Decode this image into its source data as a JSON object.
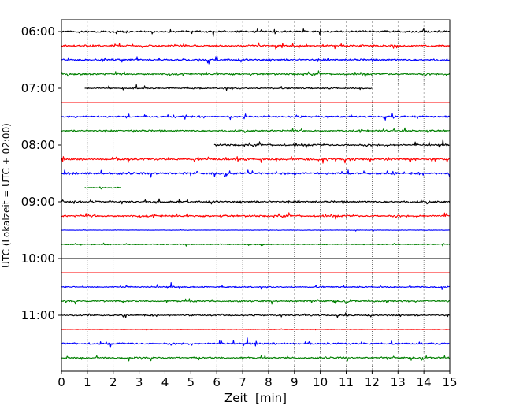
{
  "chart_data": {
    "type": "line",
    "subtype": "helicorder",
    "xlabel": "Zeit  [min]",
    "ylabel": "UTC (Lokalzeit = UTC + 02:00)",
    "xlim": [
      0,
      15
    ],
    "x_ticks": [
      "0",
      "1",
      "2",
      "3",
      "4",
      "5",
      "6",
      "7",
      "8",
      "9",
      "10",
      "11",
      "12",
      "13",
      "14",
      "15"
    ],
    "vertical_grid": "dotted",
    "y_tick_labels": [
      "06:00",
      "07:00",
      "08:00",
      "09:00",
      "10:00",
      "11:00"
    ],
    "line_colors": [
      "#000000",
      "#ff0000",
      "#0000ff",
      "#008000"
    ],
    "traces": [
      {
        "time": "06:00",
        "color": "#000000",
        "x_start": 0,
        "x_end": 15,
        "activity": 0.8
      },
      {
        "time": "06:15",
        "color": "#ff0000",
        "x_start": 0,
        "x_end": 15,
        "activity": 0.8
      },
      {
        "time": "06:30",
        "color": "#0000ff",
        "x_start": 0,
        "x_end": 15,
        "activity": 0.8
      },
      {
        "time": "06:45",
        "color": "#008000",
        "x_start": 0,
        "x_end": 15,
        "activity": 0.8
      },
      {
        "time": "07:00",
        "color": "#000000",
        "x_start": 0.9,
        "x_end": 12,
        "activity": 0.6
      },
      {
        "time": "07:15",
        "color": "#ff0000",
        "x_start": 0,
        "x_end": 15,
        "activity": 0.0
      },
      {
        "time": "07:30",
        "color": "#0000ff",
        "x_start": 0,
        "x_end": 15,
        "activity": 0.7
      },
      {
        "time": "07:45",
        "color": "#008000",
        "x_start": 0,
        "x_end": 15,
        "activity": 0.7
      },
      {
        "time": "08:00",
        "color": "#000000",
        "x_start": 5.9,
        "x_end": 15,
        "activity": 0.8
      },
      {
        "time": "08:15",
        "color": "#ff0000",
        "x_start": 0,
        "x_end": 15,
        "activity": 0.9
      },
      {
        "time": "08:30",
        "color": "#0000ff",
        "x_start": 0,
        "x_end": 15,
        "activity": 0.9
      },
      {
        "time": "08:45",
        "color": "#008000",
        "x_start": 0.9,
        "x_end": 2.3,
        "activity": 0.5
      },
      {
        "time": "09:00",
        "color": "#000000",
        "x_start": 0,
        "x_end": 15,
        "activity": 0.8
      },
      {
        "time": "09:15",
        "color": "#ff0000",
        "x_start": 0,
        "x_end": 15,
        "activity": 0.8
      },
      {
        "time": "09:30",
        "color": "#0000ff",
        "x_start": 0,
        "x_end": 15,
        "activity": 0.2
      },
      {
        "time": "09:45",
        "color": "#008000",
        "x_start": 0,
        "x_end": 15,
        "activity": 0.4
      },
      {
        "time": "10:00",
        "color": "#000000",
        "x_start": 0,
        "x_end": 15,
        "activity": 0.0
      },
      {
        "time": "10:15",
        "color": "#ff0000",
        "x_start": 0,
        "x_end": 15,
        "activity": 0.0
      },
      {
        "time": "10:30",
        "color": "#0000ff",
        "x_start": 0,
        "x_end": 15,
        "activity": 0.6
      },
      {
        "time": "10:45",
        "color": "#008000",
        "x_start": 0,
        "x_end": 15,
        "activity": 0.7
      },
      {
        "time": "11:00",
        "color": "#000000",
        "x_start": 0,
        "x_end": 15,
        "activity": 0.6
      },
      {
        "time": "11:15",
        "color": "#ff0000",
        "x_start": 0,
        "x_end": 15,
        "activity": 0.2
      },
      {
        "time": "11:30",
        "color": "#0000ff",
        "x_start": 0,
        "x_end": 15,
        "activity": 0.8
      },
      {
        "time": "11:45",
        "color": "#008000",
        "x_start": 0,
        "x_end": 15,
        "activity": 0.7
      }
    ]
  }
}
